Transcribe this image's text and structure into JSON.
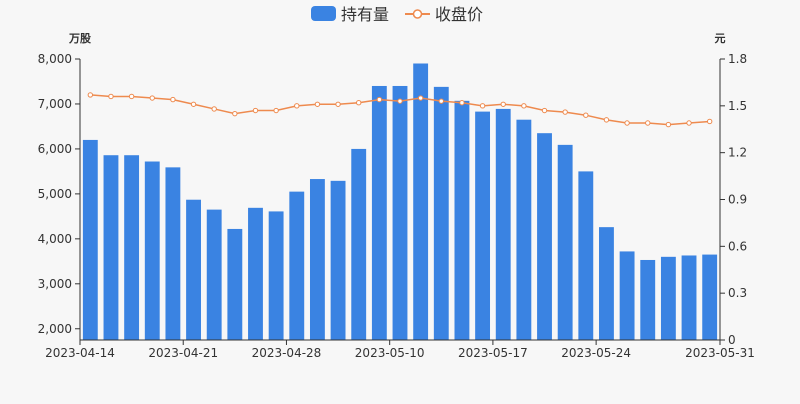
{
  "chart_data": {
    "type": "bar",
    "legend": [
      {
        "name": "持有量",
        "kind": "bar",
        "color": "#3a83e2"
      },
      {
        "name": "收盘价",
        "kind": "line",
        "color": "#ee8a4e"
      }
    ],
    "left_axis_unit": "万股",
    "right_axis_unit": "元",
    "left_ticks": [
      "2,000",
      "3,000",
      "4,000",
      "5,000",
      "6,000",
      "7,000",
      "8,000"
    ],
    "right_ticks": [
      "0",
      "0.3",
      "0.6",
      "0.9",
      "1.2",
      "1.5",
      "1.8"
    ],
    "x_tick_labels": [
      "2023-04-14",
      "2023-04-21",
      "2023-04-28",
      "2023-05-10",
      "2023-05-17",
      "2023-05-24",
      "2023-05-31"
    ],
    "x_tick_indices": [
      0,
      5,
      10,
      15,
      20,
      25,
      30
    ],
    "ylim_left": [
      1750,
      8000
    ],
    "ylim_right": [
      0,
      1.8
    ],
    "categories": [
      "2023-04-14",
      "2023-04-17",
      "2023-04-18",
      "2023-04-19",
      "2023-04-20",
      "2023-04-21",
      "2023-04-24",
      "2023-04-25",
      "2023-04-26",
      "2023-04-27",
      "2023-04-28",
      "2023-05-04",
      "2023-05-05",
      "2023-05-08",
      "2023-05-09",
      "2023-05-10",
      "2023-05-11",
      "2023-05-12",
      "2023-05-15",
      "2023-05-16",
      "2023-05-17",
      "2023-05-18",
      "2023-05-19",
      "2023-05-22",
      "2023-05-23",
      "2023-05-24",
      "2023-05-25",
      "2023-05-26",
      "2023-05-29",
      "2023-05-30",
      "2023-05-31"
    ],
    "series": [
      {
        "name": "持有量",
        "axis": "left",
        "type": "bar",
        "values": [
          6200,
          5860,
          5860,
          5720,
          5590,
          4870,
          4650,
          4220,
          4690,
          4610,
          5050,
          5330,
          5290,
          6000,
          7400,
          7400,
          7900,
          7380,
          7070,
          6830,
          6890,
          6650,
          6350,
          6090,
          5500,
          4260,
          3720,
          3530,
          3600,
          3630,
          3650
        ]
      },
      {
        "name": "收盘价",
        "axis": "right",
        "type": "line",
        "values": [
          1.57,
          1.56,
          1.56,
          1.55,
          1.54,
          1.51,
          1.48,
          1.45,
          1.47,
          1.47,
          1.5,
          1.51,
          1.51,
          1.52,
          1.54,
          1.53,
          1.55,
          1.53,
          1.52,
          1.5,
          1.51,
          1.5,
          1.47,
          1.46,
          1.44,
          1.41,
          1.39,
          1.39,
          1.38,
          1.39,
          1.4
        ]
      }
    ]
  }
}
